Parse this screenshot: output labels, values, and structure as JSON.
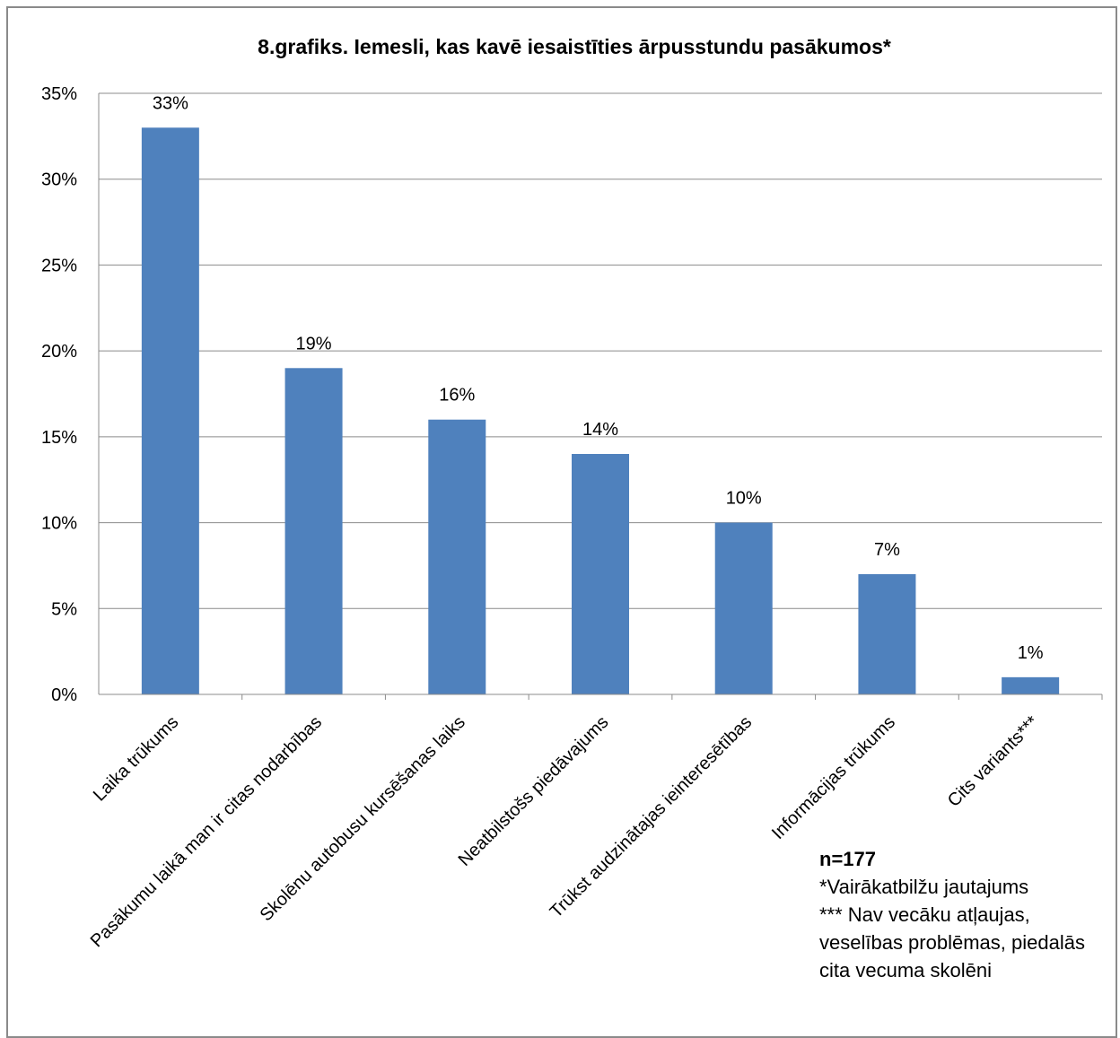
{
  "chart_data": {
    "type": "bar",
    "title": "8.grafiks. Iemesli, kas kavē iesaistīties ārpusstundu pasākumos*",
    "xlabel": "",
    "ylabel": "",
    "categories": [
      "Laika trūkums",
      "Pasākumu laikā man ir citas nodarbības",
      "Skolēnu autobusu kursēšanas laiks",
      "Neatbilstošs piedāvajums",
      "Trūkst audzinātajas ieinteresētības",
      "Informācijas trūkums",
      "Cits variants***"
    ],
    "values": [
      33,
      19,
      16,
      14,
      10,
      7,
      1
    ],
    "data_labels": [
      "33%",
      "19%",
      "16%",
      "14%",
      "10%",
      "7%",
      "1%"
    ],
    "ylim": [
      0,
      35
    ],
    "yticks": [
      "0%",
      "5%",
      "10%",
      "15%",
      "20%",
      "25%",
      "30%",
      "35%"
    ],
    "grid": true,
    "bar_color": "#4F81BD"
  },
  "notes": {
    "n": "n=177",
    "footnote1": "*Vairākatbilžu jautajums",
    "footnote2": "*** Nav vecāku atļaujas, veselības problēmas, piedalās cita vecuma skolēni"
  }
}
